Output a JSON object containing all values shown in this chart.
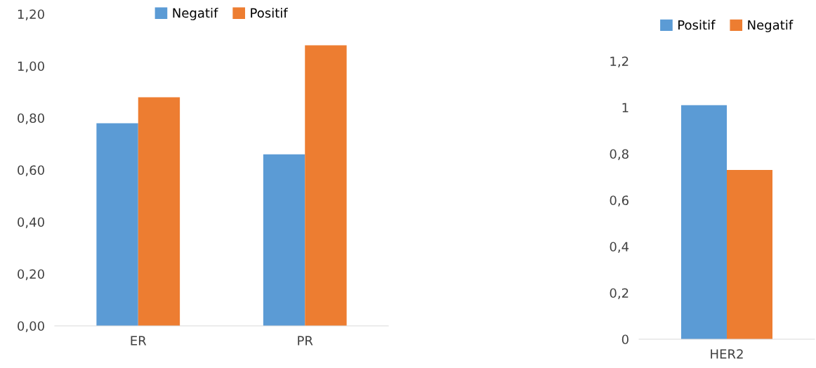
{
  "chart_data": [
    {
      "type": "bar",
      "categories": [
        "ER",
        "PR"
      ],
      "series": [
        {
          "name": "Negatif",
          "color": "#5b9bd5",
          "values": [
            0.78,
            0.66
          ]
        },
        {
          "name": "Positif",
          "color": "#ed7d31",
          "values": [
            0.88,
            1.08
          ]
        }
      ],
      "ylim": [
        0,
        1.2
      ],
      "yticks": [
        {
          "value": 0,
          "label": "0,00"
        },
        {
          "value": 0.2,
          "label": "0,20"
        },
        {
          "value": 0.4,
          "label": "0,40"
        },
        {
          "value": 0.6,
          "label": "0,60"
        },
        {
          "value": 0.8,
          "label": "0,80"
        },
        {
          "value": 1.0,
          "label": "1,00"
        },
        {
          "value": 1.2,
          "label": "1,20"
        }
      ],
      "grid": false,
      "legend": "top"
    },
    {
      "type": "bar",
      "categories": [
        "HER2"
      ],
      "series": [
        {
          "name": "Positif",
          "color": "#5b9bd5",
          "values": [
            1.01
          ]
        },
        {
          "name": "Negatif",
          "color": "#ed7d31",
          "values": [
            0.73
          ]
        }
      ],
      "ylim": [
        0,
        1.2
      ],
      "yticks": [
        0,
        {
          "value": 0.2,
          "label": "0,2"
        },
        {
          "value": 0.4,
          "label": "0,4"
        },
        {
          "value": 0.6,
          "label": "0,6"
        },
        {
          "value": 0.8,
          "label": "0,8"
        },
        1,
        {
          "value": 1.2,
          "label": "1,2"
        }
      ],
      "grid": false,
      "legend": "top"
    }
  ]
}
